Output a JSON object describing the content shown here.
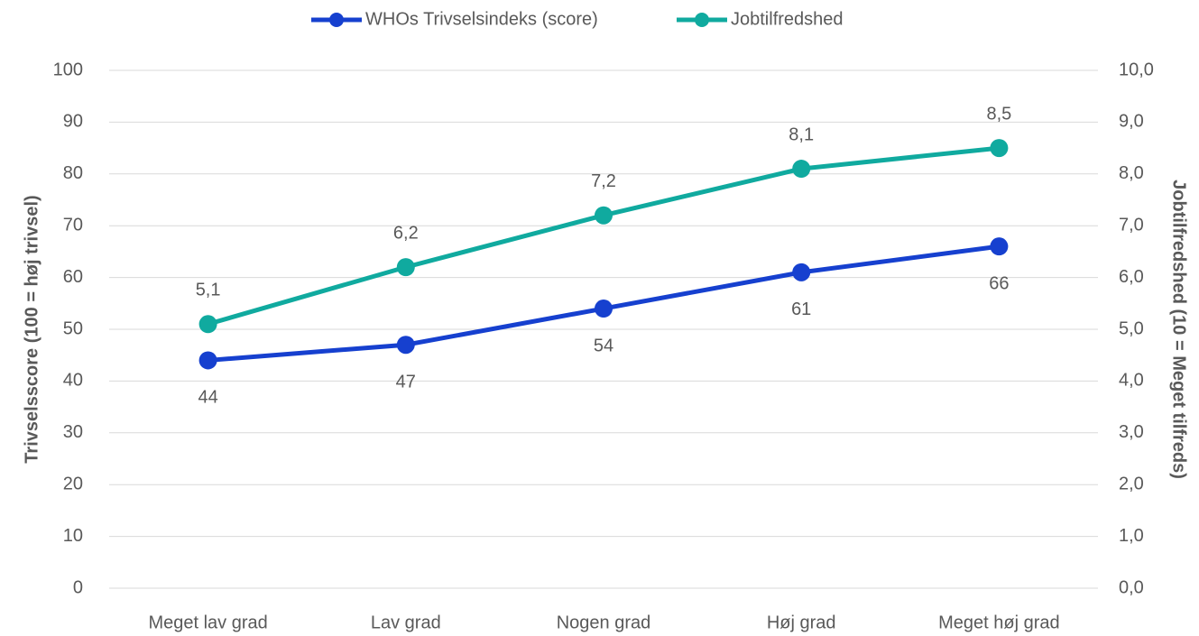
{
  "chart_data": {
    "type": "line",
    "categories": [
      "Meget lav grad",
      "Lav grad",
      "Nogen grad",
      "Høj grad",
      "Meget høj grad"
    ],
    "series": [
      {
        "name": "WHOs Trivselsindeks (score)",
        "color": "#1640cf",
        "values": [
          44,
          47,
          54,
          61,
          66
        ]
      },
      {
        "name": "Jobtilfredshed",
        "color": "#10aa9f",
        "axis": "y2",
        "values": [
          5.1,
          6.2,
          7.2,
          8.1,
          8.5
        ],
        "value_labels": [
          "5,1",
          "6,2",
          "7,2",
          "8,1",
          "8,5"
        ]
      }
    ],
    "ylabel": "Trivselsscore (100 = høj trivsel)",
    "y2label": "Jobtilfredshed (10 = Meget tilfreds)",
    "ylim": [
      0,
      100
    ],
    "yticks": [
      0,
      10,
      20,
      30,
      40,
      50,
      60,
      70,
      80,
      90,
      100
    ],
    "y2lim": [
      0,
      10
    ],
    "y2ticks": [
      {
        "value": 0,
        "label": "0,0"
      },
      {
        "value": 1,
        "label": "1,0"
      },
      {
        "value": 2,
        "label": "2,0"
      },
      {
        "value": 3,
        "label": "3,0"
      },
      {
        "value": 4,
        "label": "4,0"
      },
      {
        "value": 5,
        "label": "5,0"
      },
      {
        "value": 6,
        "label": "6,0"
      },
      {
        "value": 7,
        "label": "7,0"
      },
      {
        "value": 8,
        "label": "8,0"
      },
      {
        "value": 9,
        "label": "9,0"
      },
      {
        "value": 10,
        "label": "10,0"
      }
    ],
    "grid": true,
    "legend": "top"
  }
}
